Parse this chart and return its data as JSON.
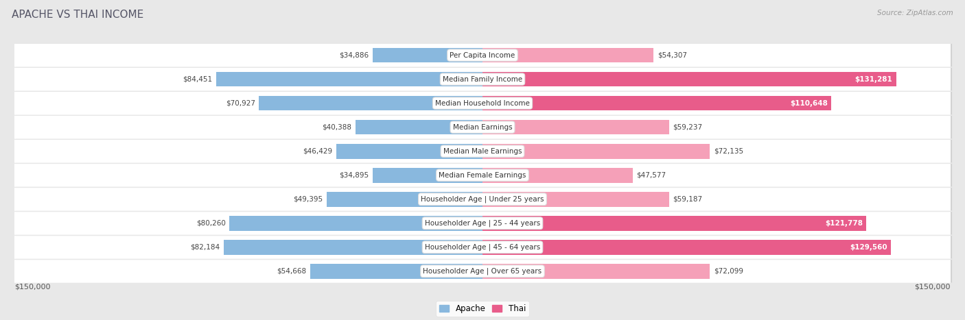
{
  "title": "APACHE VS THAI INCOME",
  "source": "Source: ZipAtlas.com",
  "categories": [
    "Per Capita Income",
    "Median Family Income",
    "Median Household Income",
    "Median Earnings",
    "Median Male Earnings",
    "Median Female Earnings",
    "Householder Age | Under 25 years",
    "Householder Age | 25 - 44 years",
    "Householder Age | 45 - 64 years",
    "Householder Age | Over 65 years"
  ],
  "apache_values": [
    34886,
    84451,
    70927,
    40388,
    46429,
    34895,
    49395,
    80260,
    82184,
    54668
  ],
  "thai_values": [
    54307,
    131281,
    110648,
    59237,
    72135,
    47577,
    59187,
    121778,
    129560,
    72099
  ],
  "apache_labels": [
    "$34,886",
    "$84,451",
    "$70,927",
    "$40,388",
    "$46,429",
    "$34,895",
    "$49,395",
    "$80,260",
    "$82,184",
    "$54,668"
  ],
  "thai_labels": [
    "$54,307",
    "$131,281",
    "$110,648",
    "$59,237",
    "$72,135",
    "$47,577",
    "$59,187",
    "$121,778",
    "$129,560",
    "$72,099"
  ],
  "apache_color": "#89b8de",
  "thai_color_light": "#f5a0b8",
  "thai_color_dark": "#e85c8a",
  "thai_threshold": 0.7,
  "max_val": 150000,
  "bg_color": "#e8e8e8",
  "row_bg": "#f5f5f5",
  "bar_height": 0.62,
  "title_fontsize": 11,
  "label_fontsize": 7.5,
  "category_fontsize": 7.5
}
